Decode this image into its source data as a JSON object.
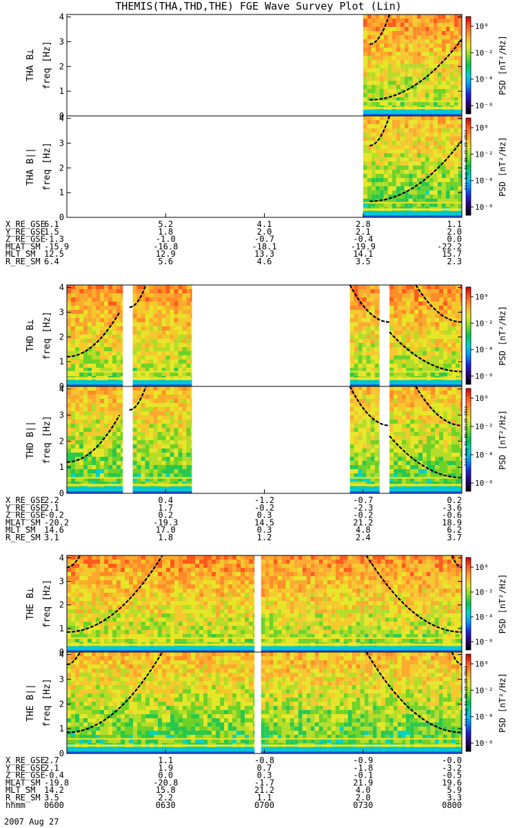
{
  "title": "THEMIS(THA,THD,THE) FGE Wave Survey Plot (Lin)",
  "date_label": "2007 Aug 27",
  "colorbar": {
    "label_prefix": "PSD ",
    "label_units": "[nT²/Hz]",
    "tick_labels": [
      "10⁰",
      "10⁻²",
      "10⁻⁴",
      "10⁻⁶"
    ],
    "colors": [
      "#000000",
      "#2a0070",
      "#1e22e0",
      "#0096ff",
      "#00d7d2",
      "#00c850",
      "#7ee028",
      "#e8e62a",
      "#fca82e",
      "#ff5a1e",
      "#d20000"
    ]
  },
  "stamp": "Fri Aug 31 06:22:29 2012",
  "chart_data": [
    {
      "probe": "THA",
      "type": "heatmap",
      "xlim": [
        0,
        120
      ],
      "panels": [
        {
          "label": "THA B⊥",
          "ylabel": "freq [Hz]",
          "ylim": [
            0,
            4.1
          ],
          "yticks": [
            "0",
            "1",
            "2",
            "3",
            "4"
          ],
          "data_ranges": [
            [
              90,
              120
            ]
          ]
        },
        {
          "label": "THA B||",
          "ylabel": "freq [Hz]",
          "ylim": [
            0,
            4.1
          ],
          "yticks": [
            "0",
            "1",
            "2",
            "3",
            "4"
          ],
          "data_ranges": [
            [
              90,
              120
            ]
          ]
        }
      ],
      "ephemeris": [
        {
          "name": "X_RE_GSE",
          "values": [
            "6.1",
            "5.2",
            "4.1",
            "2.8",
            "1.1"
          ]
        },
        {
          "name": "Y_RE_GSE",
          "values": [
            "1.5",
            "1.8",
            "2.0",
            "2.1",
            "2.0"
          ]
        },
        {
          "name": "Z_RE_GSE",
          "values": [
            "-1.3",
            "-1.0",
            "-0.7",
            "-0.4",
            "0.0"
          ]
        },
        {
          "name": "MLAT_SM",
          "values": [
            "-15.9",
            "-16.8",
            "-18.1",
            "-19.9",
            "-22.2"
          ]
        },
        {
          "name": "MLT_SM",
          "values": [
            "12.5",
            "12.9",
            "13.3",
            "14.1",
            "15.7"
          ]
        },
        {
          "name": "R_RE_SM",
          "values": [
            "6.4",
            "5.6",
            "4.6",
            "3.5",
            "2.3"
          ]
        }
      ]
    },
    {
      "probe": "THD",
      "type": "heatmap",
      "xlim": [
        0,
        120
      ],
      "panels": [
        {
          "label": "THD B⊥",
          "ylabel": "freq [Hz]",
          "ylim": [
            0,
            4.1
          ],
          "yticks": [
            "0",
            "1",
            "2",
            "3",
            "4"
          ],
          "data_ranges": [
            [
              0,
              17
            ],
            [
              20,
              38
            ],
            [
              86,
              95
            ],
            [
              98,
              120
            ]
          ]
        },
        {
          "label": "THD B||",
          "ylabel": "freq [Hz]",
          "ylim": [
            0,
            4.1
          ],
          "yticks": [
            "0",
            "1",
            "2",
            "3",
            "4"
          ],
          "data_ranges": [
            [
              0,
              17
            ],
            [
              20,
              38
            ],
            [
              86,
              95
            ],
            [
              98,
              120
            ]
          ]
        }
      ],
      "ephemeris": [
        {
          "name": "X_RE_GSE",
          "values": [
            "2.2",
            "0.4",
            "-1.2",
            "-0.7",
            "0.2"
          ]
        },
        {
          "name": "Y_RE_GSE",
          "values": [
            "2.1",
            "1.7",
            "-0.2",
            "-2.3",
            "-3.6"
          ]
        },
        {
          "name": "Z_RE_GSE",
          "values": [
            "-0.2",
            "0.2",
            "0.3",
            "-0.2",
            "-0.6"
          ]
        },
        {
          "name": "MLAT_SM",
          "values": [
            "-20.2",
            "-19.3",
            "14.5",
            "21.2",
            "18.9"
          ]
        },
        {
          "name": "MLT_SM",
          "values": [
            "14.6",
            "17.0",
            "0.3",
            "4.8",
            "6.2"
          ]
        },
        {
          "name": "R_RE_SM",
          "values": [
            "3.1",
            "1.8",
            "1.2",
            "2.4",
            "3.7"
          ]
        }
      ]
    },
    {
      "probe": "THE",
      "type": "heatmap",
      "xlim": [
        0,
        120
      ],
      "panels": [
        {
          "label": "THE B⊥",
          "ylabel": "freq [Hz]",
          "ylim": [
            0,
            4.1
          ],
          "yticks": [
            "0",
            "1",
            "2",
            "3",
            "4"
          ],
          "data_ranges": [
            [
              0,
              57
            ],
            [
              59,
              120
            ]
          ]
        },
        {
          "label": "THE B||",
          "ylabel": "freq [Hz]",
          "ylim": [
            0,
            4.1
          ],
          "yticks": [
            "0",
            "1",
            "2",
            "3",
            "4"
          ],
          "data_ranges": [
            [
              0,
              57
            ],
            [
              59,
              120
            ]
          ]
        }
      ],
      "ephemeris": [
        {
          "name": "X_RE_GSE",
          "values": [
            "2.7",
            "1.1",
            "-0.8",
            "-0.9",
            "-0.0"
          ]
        },
        {
          "name": "Y_RE_GSE",
          "values": [
            "2.1",
            "1.9",
            "0.7",
            "-1.8",
            "-3.2"
          ]
        },
        {
          "name": "Z_RE_GSE",
          "values": [
            "-0.4",
            "0.0",
            "0.3",
            "-0.1",
            "-0.5"
          ]
        },
        {
          "name": "MLAT_SM",
          "values": [
            "-19.8",
            "-20.8",
            "-1.7",
            "21.9",
            "19.6"
          ]
        },
        {
          "name": "MLT_SM",
          "values": [
            "14.2",
            "15.8",
            "21.2",
            "4.0",
            "5.9"
          ]
        },
        {
          "name": "R_RE_SM",
          "values": [
            "3.5",
            "2.2",
            "1.1",
            "2.0",
            "3.3"
          ]
        },
        {
          "name": "hhmm",
          "values": [
            "0600",
            "0630",
            "0700",
            "0730",
            "0800"
          ]
        }
      ]
    }
  ]
}
